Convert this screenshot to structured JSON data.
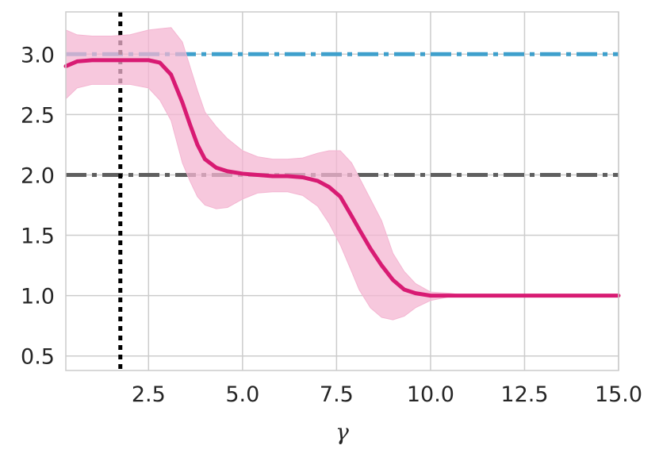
{
  "chart_data": {
    "type": "line",
    "title": "",
    "xlabel": "γ",
    "ylabel": "",
    "xlim": [
      0.3,
      15.0
    ],
    "ylim": [
      0.38,
      3.35
    ],
    "x_ticks": [
      2.5,
      5.0,
      7.5,
      10.0,
      12.5,
      15.0
    ],
    "x_tick_labels": [
      "2.5",
      "5.0",
      "7.5",
      "10.0",
      "12.5",
      "15.0"
    ],
    "y_ticks": [
      0.5,
      1.0,
      1.5,
      2.0,
      2.5,
      3.0
    ],
    "y_tick_labels": [
      "0.5",
      "1.0",
      "1.5",
      "2.0",
      "2.5",
      "3.0"
    ],
    "grid": true,
    "legend": "none",
    "reference_lines": [
      {
        "orientation": "horizontal",
        "value": 3.0,
        "style": "dashdot",
        "color": "#3fa0cc"
      },
      {
        "orientation": "horizontal",
        "value": 2.0,
        "style": "dashdot",
        "color": "#5f5f5f"
      },
      {
        "orientation": "vertical",
        "value": 1.75,
        "style": "dotted",
        "color": "#000000"
      }
    ],
    "series": [
      {
        "style": "solid",
        "color": "#d81b73",
        "band_color": "#f4b6d2",
        "x": [
          0.3,
          0.6,
          1.0,
          1.5,
          2.0,
          2.5,
          2.8,
          3.1,
          3.4,
          3.6,
          3.8,
          4.0,
          4.3,
          4.6,
          5.0,
          5.4,
          5.8,
          6.2,
          6.6,
          7.0,
          7.3,
          7.6,
          7.9,
          8.1,
          8.4,
          8.7,
          9.0,
          9.3,
          9.6,
          10.0,
          10.5,
          11.0,
          12.0,
          13.0,
          14.0,
          15.0
        ],
        "y": [
          2.9,
          2.94,
          2.95,
          2.95,
          2.95,
          2.95,
          2.93,
          2.83,
          2.6,
          2.42,
          2.25,
          2.13,
          2.06,
          2.03,
          2.01,
          2.0,
          1.99,
          1.99,
          1.98,
          1.95,
          1.9,
          1.82,
          1.66,
          1.55,
          1.39,
          1.25,
          1.13,
          1.05,
          1.02,
          1.0,
          1.0,
          1.0,
          1.0,
          1.0,
          1.0,
          1.0
        ],
        "upper": [
          3.2,
          3.16,
          3.15,
          3.15,
          3.16,
          3.2,
          3.21,
          3.22,
          3.1,
          2.9,
          2.7,
          2.52,
          2.4,
          2.3,
          2.2,
          2.15,
          2.13,
          2.13,
          2.14,
          2.18,
          2.2,
          2.2,
          2.1,
          1.98,
          1.8,
          1.62,
          1.35,
          1.2,
          1.1,
          1.03,
          1.02,
          1.0,
          1.0,
          1.0,
          1.0,
          1.0
        ],
        "lower": [
          2.63,
          2.72,
          2.75,
          2.75,
          2.75,
          2.72,
          2.62,
          2.45,
          2.1,
          1.95,
          1.82,
          1.75,
          1.72,
          1.73,
          1.8,
          1.85,
          1.86,
          1.86,
          1.83,
          1.74,
          1.6,
          1.42,
          1.2,
          1.05,
          0.9,
          0.82,
          0.8,
          0.83,
          0.9,
          0.96,
          0.99,
          1.0,
          1.0,
          1.0,
          1.0,
          1.0
        ]
      }
    ]
  }
}
